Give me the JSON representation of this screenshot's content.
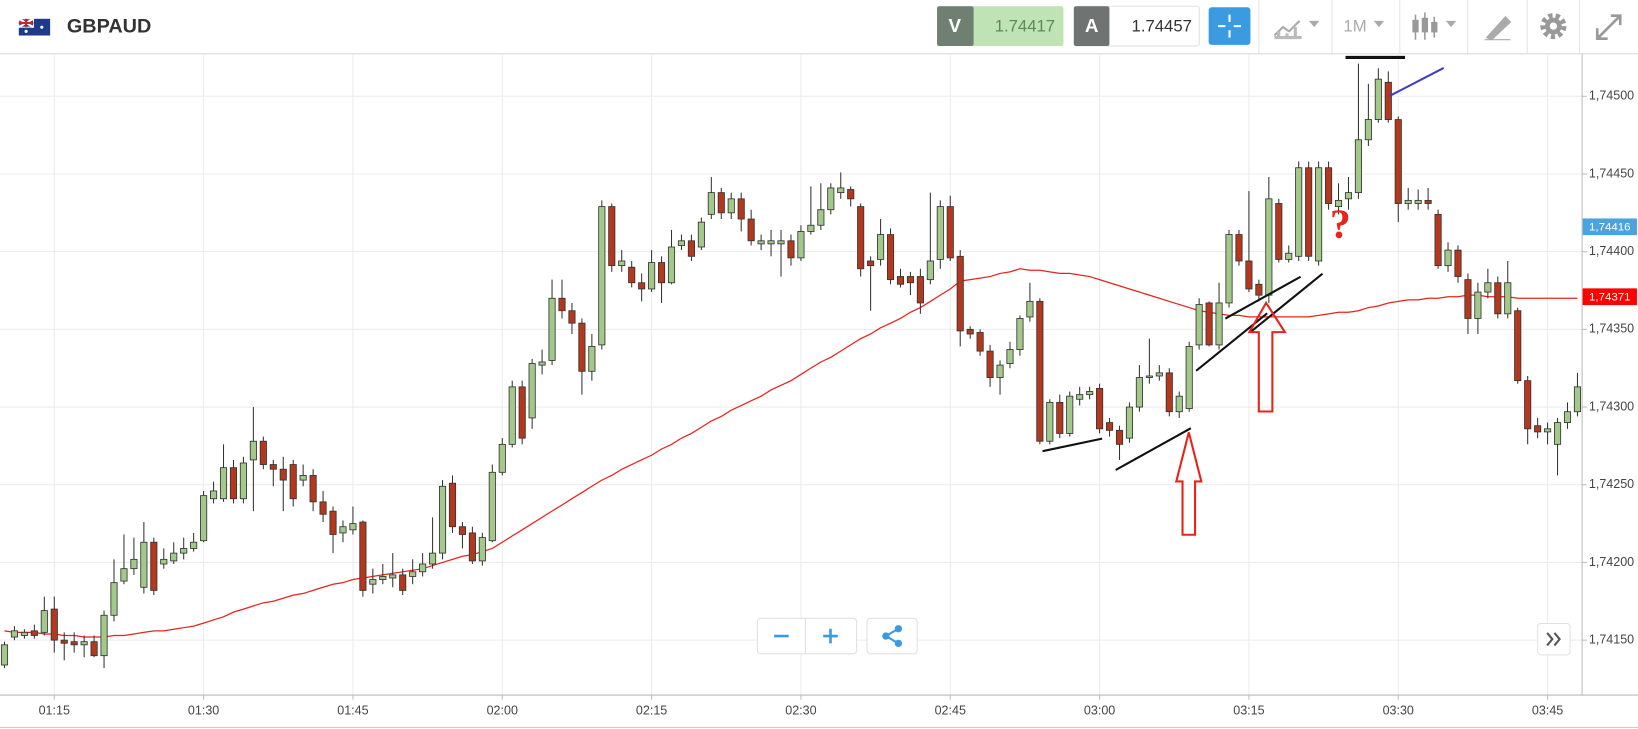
{
  "header": {
    "symbol": "GBPAUD",
    "sell_label": "V",
    "sell_price": 1.74417,
    "buy_label": "A",
    "buy_price": 1.74457,
    "timeframe": "1M"
  },
  "chart_data": {
    "type": "candlestick",
    "categories": [
      null,
      null,
      null,
      null,
      null,
      "01:15",
      null,
      null,
      null,
      null,
      null,
      null,
      null,
      null,
      null,
      null,
      null,
      null,
      null,
      null,
      "01:30",
      null,
      null,
      null,
      null,
      null,
      null,
      null,
      null,
      null,
      null,
      null,
      null,
      null,
      null,
      "01:45",
      null,
      null,
      null,
      null,
      null,
      null,
      null,
      null,
      null,
      null,
      null,
      null,
      null,
      null,
      "02:00",
      null,
      null,
      null,
      null,
      null,
      null,
      null,
      null,
      null,
      null,
      null,
      null,
      null,
      null,
      "02:15",
      null,
      null,
      null,
      null,
      null,
      null,
      null,
      null,
      null,
      null,
      null,
      null,
      null,
      null,
      "02:30",
      null,
      null,
      null,
      null,
      null,
      null,
      null,
      null,
      null,
      null,
      null,
      null,
      null,
      null,
      "02:45",
      null,
      null,
      null,
      null,
      null,
      null,
      null,
      null,
      null,
      null,
      null,
      null,
      null,
      null,
      "03:00",
      null,
      null,
      null,
      null,
      null,
      null,
      null,
      null,
      null,
      null,
      null,
      null,
      null,
      null,
      "03:15",
      null,
      null,
      null,
      null,
      null,
      null,
      null,
      null,
      null,
      null,
      null,
      null,
      null,
      null,
      "03:30",
      null,
      null,
      null,
      null,
      null,
      null,
      null,
      null,
      null,
      null,
      null,
      null,
      null,
      null,
      "03:45",
      null,
      null,
      null
    ],
    "ohlc": [
      [
        1.74134,
        1.74149,
        1.74132,
        1.74147
      ],
      [
        1.74152,
        1.74159,
        1.7415,
        1.74156
      ],
      [
        1.74153,
        1.74157,
        1.74151,
        1.74155
      ],
      [
        1.74156,
        1.7416,
        1.74151,
        1.74153
      ],
      [
        1.74155,
        1.74178,
        1.74153,
        1.74169
      ],
      [
        1.7417,
        1.74178,
        1.74142,
        1.7415
      ],
      [
        1.7415,
        1.74155,
        1.74137,
        1.74148
      ],
      [
        1.74149,
        1.74155,
        1.74142,
        1.74147
      ],
      [
        1.74147,
        1.74153,
        1.74139,
        1.74149
      ],
      [
        1.74149,
        1.74153,
        1.74139,
        1.7414
      ],
      [
        1.7414,
        1.74169,
        1.74132,
        1.74166
      ],
      [
        1.74166,
        1.74202,
        1.74162,
        1.74187
      ],
      [
        1.74188,
        1.74218,
        1.74186,
        1.74196
      ],
      [
        1.74196,
        1.74216,
        1.74192,
        1.74202
      ],
      [
        1.74184,
        1.74226,
        1.7418,
        1.74213
      ],
      [
        1.74213,
        1.74216,
        1.74179,
        1.74182
      ],
      [
        1.74199,
        1.74209,
        1.74196,
        1.74202
      ],
      [
        1.74201,
        1.74213,
        1.74199,
        1.74206
      ],
      [
        1.74206,
        1.74216,
        1.74202,
        1.74209
      ],
      [
        1.74209,
        1.74219,
        1.74207,
        1.74213
      ],
      [
        1.74214,
        1.74246,
        1.74213,
        1.74243
      ],
      [
        1.74241,
        1.74252,
        1.74238,
        1.74246
      ],
      [
        1.74241,
        1.74276,
        1.74239,
        1.74261
      ],
      [
        1.74261,
        1.74266,
        1.74238,
        1.74241
      ],
      [
        1.74241,
        1.74268,
        1.74238,
        1.74264
      ],
      [
        1.74266,
        1.743,
        1.74233,
        1.74278
      ],
      [
        1.74278,
        1.74281,
        1.7426,
        1.74263
      ],
      [
        1.74263,
        1.74266,
        1.74249,
        1.7426
      ],
      [
        1.7426,
        1.74268,
        1.74233,
        1.74253
      ],
      [
        1.74263,
        1.74266,
        1.74236,
        1.74241
      ],
      [
        1.74253,
        1.74263,
        1.74249,
        1.74256
      ],
      [
        1.74256,
        1.7426,
        1.74233,
        1.74239
      ],
      [
        1.74239,
        1.74246,
        1.74226,
        1.74231
      ],
      [
        1.74233,
        1.74236,
        1.74206,
        1.74218
      ],
      [
        1.74219,
        1.74227,
        1.74213,
        1.74223
      ],
      [
        1.74221,
        1.74236,
        1.74218,
        1.74225
      ],
      [
        1.74226,
        1.74227,
        1.74178,
        1.74182
      ],
      [
        1.74186,
        1.74196,
        1.7418,
        1.74189
      ],
      [
        1.74189,
        1.74199,
        1.74186,
        1.74191
      ],
      [
        1.7419,
        1.74206,
        1.74184,
        1.74192
      ],
      [
        1.74192,
        1.74196,
        1.74179,
        1.74182
      ],
      [
        1.74191,
        1.74202,
        1.74186,
        1.74194
      ],
      [
        1.74194,
        1.74206,
        1.74191,
        1.74199
      ],
      [
        1.74199,
        1.74229,
        1.74196,
        1.74206
      ],
      [
        1.74206,
        1.74253,
        1.74202,
        1.74249
      ],
      [
        1.74251,
        1.74256,
        1.74219,
        1.74223
      ],
      [
        1.74223,
        1.74226,
        1.74209,
        1.74218
      ],
      [
        1.74219,
        1.74223,
        1.74199,
        1.74201
      ],
      [
        1.74201,
        1.74219,
        1.74198,
        1.74216
      ],
      [
        1.74214,
        1.74263,
        1.74213,
        1.74258
      ],
      [
        1.74258,
        1.7428,
        1.74256,
        1.74276
      ],
      [
        1.74276,
        1.74317,
        1.74274,
        1.74313
      ],
      [
        1.74313,
        1.74317,
        1.74276,
        1.7428
      ],
      [
        1.74293,
        1.74331,
        1.74286,
        1.74328
      ],
      [
        1.74327,
        1.74337,
        1.74321,
        1.74329
      ],
      [
        1.7433,
        1.74382,
        1.74327,
        1.7437
      ],
      [
        1.7437,
        1.74382,
        1.74357,
        1.74362
      ],
      [
        1.74362,
        1.74367,
        1.74347,
        1.74354
      ],
      [
        1.74354,
        1.74357,
        1.74308,
        1.74323
      ],
      [
        1.74323,
        1.74347,
        1.74317,
        1.74339
      ],
      [
        1.7434,
        1.74433,
        1.74337,
        1.74429
      ],
      [
        1.74429,
        1.74431,
        1.74387,
        1.74391
      ],
      [
        1.74391,
        1.74401,
        1.74387,
        1.74394
      ],
      [
        1.7439,
        1.74394,
        1.74377,
        1.7438
      ],
      [
        1.7438,
        1.74386,
        1.74368,
        1.74376
      ],
      [
        1.74376,
        1.74401,
        1.74374,
        1.74393
      ],
      [
        1.74393,
        1.74397,
        1.74367,
        1.7438
      ],
      [
        1.7438,
        1.74414,
        1.74379,
        1.74403
      ],
      [
        1.74404,
        1.74411,
        1.74401,
        1.74407
      ],
      [
        1.74407,
        1.74411,
        1.74394,
        1.74397
      ],
      [
        1.74403,
        1.74422,
        1.74401,
        1.74419
      ],
      [
        1.74424,
        1.74448,
        1.74421,
        1.74438
      ],
      [
        1.74438,
        1.74441,
        1.74421,
        1.74425
      ],
      [
        1.74425,
        1.74438,
        1.74421,
        1.74434
      ],
      [
        1.74434,
        1.74438,
        1.74413,
        1.74421
      ],
      [
        1.74421,
        1.74427,
        1.74404,
        1.74407
      ],
      [
        1.74405,
        1.74411,
        1.74401,
        1.74407
      ],
      [
        1.74405,
        1.74414,
        1.74397,
        1.74407
      ],
      [
        1.74405,
        1.74414,
        1.74384,
        1.74407
      ],
      [
        1.74407,
        1.74411,
        1.74391,
        1.74396
      ],
      [
        1.74396,
        1.74417,
        1.74394,
        1.74413
      ],
      [
        1.74413,
        1.74442,
        1.74411,
        1.74417
      ],
      [
        1.74417,
        1.74444,
        1.74414,
        1.74427
      ],
      [
        1.74427,
        1.74444,
        1.74424,
        1.74441
      ],
      [
        1.74438,
        1.74451,
        1.74434,
        1.74441
      ],
      [
        1.7444,
        1.74442,
        1.74429,
        1.74434
      ],
      [
        1.74429,
        1.74431,
        1.74384,
        1.74389
      ],
      [
        1.74394,
        1.74397,
        1.74362,
        1.74391
      ],
      [
        1.74395,
        1.74421,
        1.74391,
        1.74411
      ],
      [
        1.74411,
        1.74415,
        1.74379,
        1.74382
      ],
      [
        1.74384,
        1.74389,
        1.74377,
        1.74379
      ],
      [
        1.74384,
        1.74387,
        1.74372,
        1.7438
      ],
      [
        1.74384,
        1.74389,
        1.7436,
        1.74367
      ],
      [
        1.74382,
        1.74438,
        1.74379,
        1.74394
      ],
      [
        1.74395,
        1.74433,
        1.74389,
        1.74429
      ],
      [
        1.74429,
        1.74436,
        1.74394,
        1.74396
      ],
      [
        1.74397,
        1.74401,
        1.74339,
        1.74349
      ],
      [
        1.7435,
        1.74352,
        1.74344,
        1.74347
      ],
      [
        1.74348,
        1.7435,
        1.74333,
        1.74336
      ],
      [
        1.74336,
        1.7434,
        1.74313,
        1.74319
      ],
      [
        1.74319,
        1.7433,
        1.74308,
        1.74327
      ],
      [
        1.74328,
        1.74342,
        1.74325,
        1.74337
      ],
      [
        1.74337,
        1.74359,
        1.74333,
        1.74357
      ],
      [
        1.74358,
        1.7438,
        1.74355,
        1.74368
      ],
      [
        1.74368,
        1.7437,
        1.74276,
        1.74278
      ],
      [
        1.74278,
        1.74305,
        1.74276,
        1.74303
      ],
      [
        1.74303,
        1.74308,
        1.7428,
        1.74283
      ],
      [
        1.74283,
        1.7431,
        1.74281,
        1.74307
      ],
      [
        1.74305,
        1.74313,
        1.74301,
        1.74308
      ],
      [
        1.74308,
        1.74313,
        1.74305,
        1.7431
      ],
      [
        1.74312,
        1.74315,
        1.74283,
        1.74286
      ],
      [
        1.7429,
        1.74293,
        1.74281,
        1.74285
      ],
      [
        1.74285,
        1.74288,
        1.74266,
        1.74276
      ],
      [
        1.7428,
        1.74303,
        1.74277,
        1.743
      ],
      [
        1.743,
        1.74327,
        1.74297,
        1.74319
      ],
      [
        1.74319,
        1.74344,
        1.74315,
        1.7432
      ],
      [
        1.7432,
        1.74327,
        1.74317,
        1.74322
      ],
      [
        1.74322,
        1.74325,
        1.74294,
        1.74297
      ],
      [
        1.74297,
        1.7431,
        1.74293,
        1.74307
      ],
      [
        1.74299,
        1.74342,
        1.74297,
        1.74339
      ],
      [
        1.7434,
        1.7437,
        1.74337,
        1.74366
      ],
      [
        1.74367,
        1.74368,
        1.74339,
        1.7434
      ],
      [
        1.7434,
        1.7438,
        1.74337,
        1.74367
      ],
      [
        1.74367,
        1.74414,
        1.74364,
        1.74411
      ],
      [
        1.74411,
        1.74414,
        1.74391,
        1.74394
      ],
      [
        1.74394,
        1.74439,
        1.74374,
        1.74376
      ],
      [
        1.74379,
        1.74382,
        1.74368,
        1.74372
      ],
      [
        1.74372,
        1.74448,
        1.74367,
        1.74434
      ],
      [
        1.74431,
        1.74434,
        1.74393,
        1.74395
      ],
      [
        1.74395,
        1.74404,
        1.74393,
        1.74399
      ],
      [
        1.74397,
        1.74458,
        1.74394,
        1.74454
      ],
      [
        1.74454,
        1.74458,
        1.74394,
        1.74397
      ],
      [
        1.74394,
        1.74458,
        1.74391,
        1.74454
      ],
      [
        1.74454,
        1.74458,
        1.74427,
        1.74431
      ],
      [
        1.74429,
        1.74444,
        1.74424,
        1.74433
      ],
      [
        1.74434,
        1.74448,
        1.74427,
        1.74438
      ],
      [
        1.74438,
        1.74521,
        1.74434,
        1.74472
      ],
      [
        1.74472,
        1.74508,
        1.74468,
        1.74485
      ],
      [
        1.74485,
        1.74518,
        1.74483,
        1.74511
      ],
      [
        1.74509,
        1.74516,
        1.74483,
        1.74485
      ],
      [
        1.74485,
        1.74487,
        1.74419,
        1.74431
      ],
      [
        1.74431,
        1.74441,
        1.74427,
        1.74433
      ],
      [
        1.74431,
        1.7444,
        1.74427,
        1.74433
      ],
      [
        1.74433,
        1.74441,
        1.74427,
        1.74431
      ],
      [
        1.74424,
        1.74427,
        1.74389,
        1.74391
      ],
      [
        1.74391,
        1.74406,
        1.74387,
        1.74401
      ],
      [
        1.74401,
        1.74404,
        1.7438,
        1.74384
      ],
      [
        1.74382,
        1.74386,
        1.74347,
        1.74357
      ],
      [
        1.74357,
        1.7438,
        1.74347,
        1.74374
      ],
      [
        1.74374,
        1.74389,
        1.7437,
        1.7438
      ],
      [
        1.7438,
        1.74384,
        1.74357,
        1.7436
      ],
      [
        1.7436,
        1.74394,
        1.74357,
        1.7438
      ],
      [
        1.74362,
        1.74364,
        1.74315,
        1.74317
      ],
      [
        1.74317,
        1.7432,
        1.74276,
        1.74286
      ],
      [
        1.74288,
        1.74293,
        1.7428,
        1.74284
      ],
      [
        1.74284,
        1.7429,
        1.74276,
        1.74286
      ],
      [
        1.74276,
        1.74293,
        1.74256,
        1.7429
      ],
      [
        1.7429,
        1.74303,
        1.74286,
        1.74297
      ],
      [
        1.74297,
        1.74322,
        1.74294,
        1.74313
      ]
    ],
    "up_color": "#a3c98a",
    "down_color": "#b4381d",
    "ma": {
      "color": "#e8231b",
      "values": [
        1.74156,
        1.74155,
        1.74155,
        1.74155,
        1.74154,
        1.74154,
        1.74153,
        1.74153,
        1.74152,
        1.74152,
        1.74152,
        1.74153,
        1.74153,
        1.74154,
        1.74155,
        1.74156,
        1.74156,
        1.74157,
        1.74158,
        1.74159,
        1.74161,
        1.74163,
        1.74165,
        1.74168,
        1.7417,
        1.74172,
        1.74174,
        1.74175,
        1.74177,
        1.74179,
        1.7418,
        1.74182,
        1.74184,
        1.74186,
        1.74187,
        1.74189,
        1.7419,
        1.74191,
        1.74192,
        1.74193,
        1.74194,
        1.74195,
        1.74196,
        1.74198,
        1.742,
        1.74202,
        1.74204,
        1.74205,
        1.74207,
        1.74209,
        1.74213,
        1.74217,
        1.74221,
        1.74225,
        1.74229,
        1.74233,
        1.74237,
        1.74241,
        1.74245,
        1.74249,
        1.74253,
        1.74256,
        1.7426,
        1.74263,
        1.74266,
        1.74269,
        1.74273,
        1.74276,
        1.7428,
        1.74283,
        1.74287,
        1.74291,
        1.74294,
        1.74298,
        1.74301,
        1.74304,
        1.74307,
        1.74311,
        1.74314,
        1.74317,
        1.74321,
        1.74325,
        1.74329,
        1.74332,
        1.74336,
        1.7434,
        1.74344,
        1.74347,
        1.74351,
        1.74354,
        1.74357,
        1.74361,
        1.74364,
        1.74368,
        1.74372,
        1.74376,
        1.74381,
        1.74382,
        1.74383,
        1.74384,
        1.74386,
        1.74387,
        1.74389,
        1.74388,
        1.74388,
        1.74387,
        1.74386,
        1.74386,
        1.74385,
        1.74384,
        1.74382,
        1.7438,
        1.74378,
        1.74376,
        1.74374,
        1.74372,
        1.7437,
        1.74368,
        1.74366,
        1.74364,
        1.74362,
        1.74361,
        1.7436,
        1.74359,
        1.74359,
        1.74358,
        1.74358,
        1.74358,
        1.74358,
        1.74358,
        1.74358,
        1.74358,
        1.74359,
        1.7436,
        1.74361,
        1.74361,
        1.74362,
        1.74364,
        1.74365,
        1.74367,
        1.74368,
        1.74369,
        1.74369,
        1.7437,
        1.7437,
        1.74371,
        1.74371,
        1.74372,
        1.74372,
        1.74371,
        1.74371,
        1.74371,
        1.7437,
        1.7437,
        1.7437,
        1.7437,
        1.7437,
        1.7437,
        1.7437
      ]
    },
    "ylim": [
      1.74115,
      1.74527
    ],
    "yticks": [
      {
        "value": 1.7415,
        "label": "1,74150"
      },
      {
        "value": 1.742,
        "label": "1,74200"
      },
      {
        "value": 1.7425,
        "label": "1,74250"
      },
      {
        "value": 1.743,
        "label": "1,74300"
      },
      {
        "value": 1.7435,
        "label": "1,74350"
      },
      {
        "value": 1.744,
        "label": "1,74400"
      },
      {
        "value": 1.7445,
        "label": "1,74450"
      },
      {
        "value": 1.745,
        "label": "1,74500"
      }
    ],
    "price_labels": [
      {
        "value": 1.74416,
        "label": "1,74416",
        "color": "#4aa3df"
      },
      {
        "value": 1.74371,
        "label": "1,74371",
        "color": "#ff0000"
      }
    ],
    "annotation": "?",
    "grid": true
  }
}
